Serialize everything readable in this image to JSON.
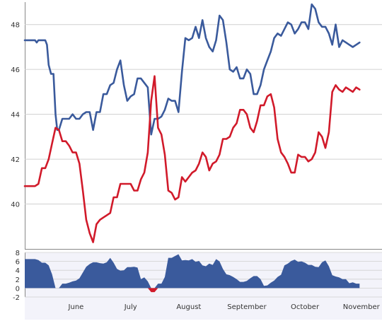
{
  "colors": {
    "series_blue": "#3a5a9c",
    "series_red": "#d11a2a",
    "area_positive": "#3a5a9c",
    "area_negative": "#d11a2a",
    "grid": "#d0d0d0",
    "axis": "#888888",
    "lower_background": "#f3f3fa"
  },
  "chart_data": [
    {
      "type": "line",
      "title": "",
      "xlabel": "",
      "ylabel": "",
      "x_ticks": [
        "June",
        "July",
        "August",
        "September",
        "October",
        "November"
      ],
      "y_ticks": [
        "40",
        "42",
        "44",
        "46",
        "48"
      ],
      "ylim": [
        38,
        49
      ],
      "xlim": [
        0,
        100
      ],
      "grid": true,
      "series": [
        {
          "color": "#3a5a9c",
          "x": [
            0,
            3,
            3.5,
            4,
            6,
            6.5,
            7,
            7.7,
            8.4,
            9,
            9.5,
            10,
            11,
            12,
            13,
            14,
            15,
            16,
            17,
            18,
            19,
            20,
            21,
            22,
            23,
            24,
            25,
            26,
            27,
            28,
            29,
            30,
            31,
            32,
            33,
            34,
            35,
            36,
            37,
            38,
            39,
            40,
            41,
            42,
            43,
            44,
            45,
            46,
            47,
            48,
            49,
            50,
            51,
            52,
            53,
            54,
            55,
            56,
            57,
            58,
            59,
            60,
            61,
            62,
            63,
            64,
            65,
            66,
            67,
            68,
            69,
            70,
            71,
            72,
            73,
            74,
            75,
            76,
            77,
            78,
            79,
            80,
            81,
            82,
            83,
            84,
            85,
            86,
            87,
            88,
            89,
            90,
            91,
            92,
            93,
            94,
            95,
            96,
            97,
            98
          ],
          "y": [
            47.3,
            47.3,
            47.2,
            47.3,
            47.3,
            47.1,
            46.2,
            45.8,
            45.8,
            44.0,
            43.3,
            43.3,
            43.8,
            43.8,
            43.8,
            44.0,
            43.8,
            43.8,
            44.0,
            44.1,
            44.1,
            43.3,
            44.1,
            44.1,
            44.9,
            44.9,
            45.3,
            45.4,
            46.0,
            46.4,
            45.3,
            44.6,
            44.8,
            44.9,
            45.6,
            45.6,
            45.4,
            45.2,
            43.1,
            43.8,
            43.8,
            43.9,
            44.2,
            44.7,
            44.6,
            44.6,
            44.1,
            45.9,
            47.4,
            47.3,
            47.4,
            47.9,
            47.4,
            48.2,
            47.4,
            47.0,
            46.8,
            47.3,
            48.4,
            48.2,
            47.2,
            46.0,
            45.9,
            46.1,
            45.6,
            45.6,
            46.0,
            45.8,
            44.9,
            44.9,
            45.3,
            46.0,
            46.4,
            46.8,
            47.4,
            47.6,
            47.5,
            47.8,
            48.1,
            48.0,
            47.6,
            47.8,
            48.1,
            48.1,
            47.8,
            48.9,
            48.7,
            48.1,
            47.9,
            47.9,
            47.6,
            47.1,
            48.0,
            47.0,
            47.3,
            47.2,
            47.1,
            47.0,
            47.1,
            47.2
          ]
        },
        {
          "color": "#d11a2a",
          "x": [
            0,
            3,
            4,
            5,
            6,
            7,
            8,
            9,
            10,
            11,
            12,
            13,
            14,
            15,
            16,
            17,
            18,
            19,
            20,
            21,
            22,
            23,
            24,
            25,
            26,
            27,
            28,
            29,
            30,
            31,
            32,
            33,
            34,
            35,
            36,
            37,
            38,
            39,
            40,
            41,
            42,
            43,
            44,
            45,
            46,
            47,
            48,
            49,
            50,
            51,
            52,
            53,
            54,
            55,
            56,
            57,
            58,
            59,
            60,
            61,
            62,
            63,
            64,
            65,
            66,
            67,
            68,
            69,
            70,
            71,
            72,
            73,
            74,
            75,
            76,
            77,
            78,
            79,
            80,
            81,
            82,
            83,
            84,
            85,
            86,
            87,
            88,
            89,
            90,
            91,
            92,
            93,
            94,
            95,
            96,
            97,
            98
          ],
          "y": [
            40.8,
            40.8,
            40.9,
            41.6,
            41.6,
            42.0,
            42.7,
            43.4,
            43.3,
            42.8,
            42.8,
            42.6,
            42.3,
            42.3,
            41.8,
            40.6,
            39.3,
            38.7,
            38.3,
            39.1,
            39.3,
            39.4,
            39.5,
            39.6,
            40.3,
            40.3,
            40.9,
            40.9,
            40.9,
            40.9,
            40.6,
            40.6,
            41.1,
            41.4,
            42.3,
            44.6,
            45.7,
            43.4,
            43.1,
            42.2,
            40.6,
            40.5,
            40.2,
            40.3,
            41.2,
            41.0,
            41.2,
            41.4,
            41.5,
            41.8,
            42.3,
            42.1,
            41.5,
            41.8,
            41.9,
            42.2,
            42.9,
            42.9,
            43.0,
            43.4,
            43.6,
            44.2,
            44.2,
            44.0,
            43.4,
            43.2,
            43.7,
            44.4,
            44.4,
            44.8,
            44.9,
            44.3,
            42.9,
            42.3,
            42.1,
            41.8,
            41.4,
            41.4,
            42.2,
            42.1,
            42.1,
            41.9,
            42.0,
            42.3,
            43.2,
            43.0,
            42.5,
            43.2,
            45.0,
            45.3,
            45.1,
            45.0,
            45.2,
            45.1,
            45.0,
            45.2,
            45.1
          ]
        }
      ]
    },
    {
      "type": "area",
      "title": "",
      "xlabel": "",
      "ylabel": "",
      "x_ticks": [
        "June",
        "July",
        "August",
        "September",
        "October",
        "November"
      ],
      "y_ticks": [
        "-2",
        "0",
        "2",
        "4",
        "6",
        "8"
      ],
      "ylim": [
        -2,
        8
      ],
      "xlim": [
        0,
        100
      ],
      "grid": true,
      "series": [
        {
          "color": "#3a5a9c",
          "x": [
            0,
            3,
            4,
            5,
            6,
            7,
            8,
            9,
            10,
            11,
            12,
            13,
            14,
            15,
            16,
            17,
            18,
            19,
            20,
            21,
            22,
            23,
            24,
            25,
            26,
            27,
            28,
            29,
            30,
            31,
            32,
            33,
            34,
            35,
            36,
            37,
            38,
            39,
            40,
            41,
            42,
            43,
            44,
            45,
            46,
            47,
            48,
            49,
            50,
            51,
            52,
            53,
            54,
            55,
            56,
            57,
            58,
            59,
            60,
            61,
            62,
            63,
            64,
            65,
            66,
            67,
            68,
            69,
            70,
            71,
            72,
            73,
            74,
            75,
            76,
            77,
            78,
            79,
            80,
            81,
            82,
            83,
            84,
            85,
            86,
            87,
            88,
            89,
            90,
            91,
            92,
            93,
            94,
            95,
            96,
            97,
            98
          ],
          "y": [
            6.5,
            6.5,
            6.3,
            5.7,
            5.7,
            5.1,
            3.1,
            0.0,
            0.0,
            1.0,
            1.0,
            1.2,
            1.5,
            1.7,
            2.2,
            3.5,
            4.8,
            5.4,
            5.8,
            5.8,
            5.6,
            5.5,
            5.8,
            6.8,
            5.7,
            4.3,
            3.9,
            4.0,
            4.7,
            4.7,
            4.8,
            4.6,
            2.0,
            2.4,
            1.5,
            -0.9,
            -0.9,
            1.0,
            1.0,
            2.5,
            6.8,
            6.8,
            7.2,
            7.6,
            6.2,
            6.3,
            6.2,
            6.5,
            5.9,
            6.1,
            5.1,
            4.9,
            5.5,
            5.2,
            6.5,
            6.0,
            4.3,
            3.1,
            2.9,
            2.5,
            2.0,
            1.4,
            1.4,
            1.6,
            2.2,
            2.7,
            2.7,
            2.0,
            0.5,
            0.6,
            1.2,
            1.7,
            2.5,
            3.0,
            5.1,
            5.5,
            6.1,
            6.4,
            5.9,
            6.0,
            5.7,
            5.2,
            5.2,
            4.8,
            4.7,
            5.8,
            6.2,
            4.9,
            2.9,
            2.6,
            2.4,
            2.0,
            2.0,
            1.1,
            1.3,
            1.0,
            1.0
          ]
        }
      ]
    }
  ]
}
